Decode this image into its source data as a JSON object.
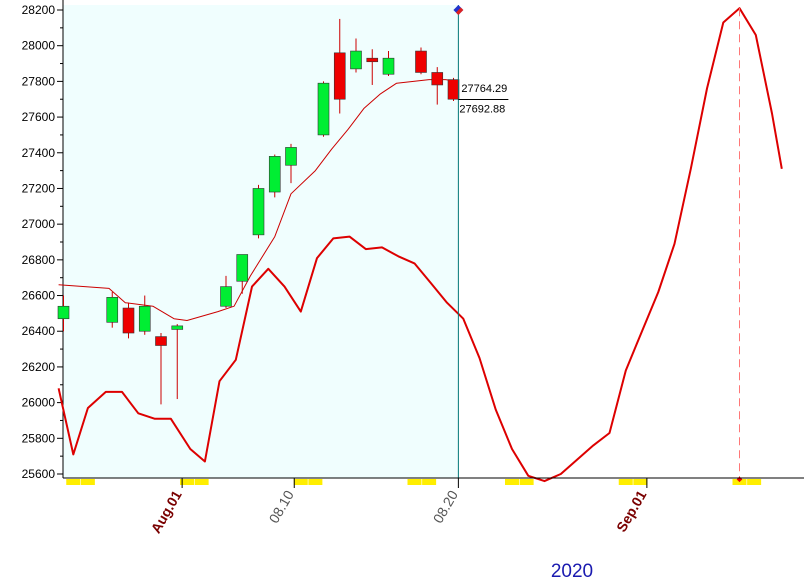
{
  "chart_data": {
    "type": "candlestick",
    "title": "",
    "xlabel": "",
    "ylabel": "",
    "year_label": "2020",
    "ylim": [
      25550,
      28230
    ],
    "y_ticks": [
      25600,
      25800,
      26000,
      26200,
      26400,
      26600,
      26800,
      27000,
      27200,
      27400,
      27600,
      27800,
      28000,
      28200
    ],
    "x_ticks": [
      {
        "label": "Aug.01",
        "slot": 7.3,
        "color": "#7a0000",
        "weight": "bold"
      },
      {
        "label": "08.10",
        "slot": 14.2,
        "color": "#555555",
        "weight": "normal"
      },
      {
        "label": "08.20",
        "slot": 24.3,
        "color": "#555555",
        "weight": "normal"
      },
      {
        "label": "Sep.01",
        "slot": 35.9,
        "color": "#7a0000",
        "weight": "bold"
      }
    ],
    "candles": [
      {
        "slot": 0,
        "open": 26470,
        "close": 26540,
        "high": 26600,
        "low": 26400
      },
      {
        "slot": 3,
        "open": 26450,
        "close": 26590,
        "high": 26620,
        "low": 26420
      },
      {
        "slot": 4,
        "open": 26530,
        "close": 26390,
        "high": 26560,
        "low": 26360
      },
      {
        "slot": 5,
        "open": 26400,
        "close": 26540,
        "high": 26600,
        "low": 26380
      },
      {
        "slot": 6,
        "open": 26370,
        "close": 26320,
        "high": 26390,
        "low": 25990
      },
      {
        "slot": 7,
        "open": 26410,
        "close": 26430,
        "high": 26440,
        "low": 26020
      },
      {
        "slot": 10,
        "open": 26540,
        "close": 26650,
        "high": 26710,
        "low": 26530
      },
      {
        "slot": 11,
        "open": 26680,
        "close": 26830,
        "high": 26830,
        "low": 26610
      },
      {
        "slot": 12,
        "open": 26940,
        "close": 27200,
        "high": 27220,
        "low": 26920
      },
      {
        "slot": 13,
        "open": 27180,
        "close": 27380,
        "high": 27390,
        "low": 27150
      },
      {
        "slot": 14,
        "open": 27330,
        "close": 27430,
        "high": 27450,
        "low": 27230
      },
      {
        "slot": 16,
        "open": 27500,
        "close": 27790,
        "high": 27800,
        "low": 27490
      },
      {
        "slot": 17,
        "open": 27960,
        "close": 27700,
        "high": 28150,
        "low": 27620
      },
      {
        "slot": 18,
        "open": 27870,
        "close": 27970,
        "high": 28040,
        "low": 27850
      },
      {
        "slot": 19,
        "open": 27930,
        "close": 27910,
        "high": 27980,
        "low": 27780
      },
      {
        "slot": 20,
        "open": 27840,
        "close": 27930,
        "high": 27970,
        "low": 27830
      },
      {
        "slot": 22,
        "open": 27970,
        "close": 27850,
        "high": 27990,
        "low": 27840
      },
      {
        "slot": 23,
        "open": 27850,
        "close": 27780,
        "high": 27880,
        "low": 27670
      },
      {
        "slot": 24,
        "open": 27810,
        "close": 27700,
        "high": 27820,
        "low": 27690
      }
    ],
    "series": [
      {
        "color": "#cc0000",
        "width": 1,
        "points": [
          [
            -0.3,
            26660
          ],
          [
            2.8,
            26640
          ],
          [
            3.8,
            26560
          ],
          [
            5.5,
            26540
          ],
          [
            6.8,
            26470
          ],
          [
            7.6,
            26460
          ],
          [
            9.5,
            26510
          ],
          [
            10.5,
            26540
          ],
          [
            11.5,
            26710
          ],
          [
            13,
            26930
          ],
          [
            14,
            27170
          ],
          [
            15.5,
            27300
          ],
          [
            16.5,
            27420
          ],
          [
            17.5,
            27530
          ],
          [
            18.5,
            27650
          ],
          [
            19.5,
            27730
          ],
          [
            20.5,
            27790
          ],
          [
            22.5,
            27810
          ],
          [
            23.5,
            27810
          ],
          [
            24.3,
            27800
          ]
        ]
      },
      {
        "color": "#dd0000",
        "width": 2,
        "points": [
          [
            -0.3,
            26080
          ],
          [
            0.6,
            25710
          ],
          [
            1.5,
            25970
          ],
          [
            2.6,
            26060
          ],
          [
            3.6,
            26060
          ],
          [
            4.6,
            25940
          ],
          [
            5.6,
            25910
          ],
          [
            6.6,
            25910
          ],
          [
            7.8,
            25740
          ],
          [
            8.7,
            25670
          ],
          [
            9.6,
            26120
          ],
          [
            10.6,
            26240
          ],
          [
            11.6,
            26650
          ],
          [
            12.6,
            26750
          ],
          [
            13.6,
            26650
          ],
          [
            14.6,
            26510
          ],
          [
            15.6,
            26810
          ],
          [
            16.6,
            26920
          ],
          [
            17.6,
            26930
          ],
          [
            18.6,
            26860
          ],
          [
            19.6,
            26870
          ],
          [
            20.6,
            26820
          ],
          [
            21.6,
            26780
          ],
          [
            22.6,
            26670
          ],
          [
            23.6,
            26560
          ],
          [
            24.6,
            26470
          ],
          [
            25.6,
            26250
          ],
          [
            26.6,
            25960
          ],
          [
            27.6,
            25740
          ],
          [
            28.6,
            25590
          ],
          [
            29.6,
            25560
          ],
          [
            30.6,
            25600
          ],
          [
            31.6,
            25680
          ],
          [
            32.6,
            25760
          ],
          [
            33.6,
            25830
          ],
          [
            34.6,
            26180
          ],
          [
            35.6,
            26400
          ],
          [
            36.6,
            26620
          ],
          [
            37.6,
            26890
          ],
          [
            38.6,
            27310
          ],
          [
            39.6,
            27760
          ],
          [
            40.6,
            28130
          ],
          [
            41.6,
            28210
          ],
          [
            42.6,
            28060
          ],
          [
            43.6,
            27620
          ],
          [
            44.2,
            27310
          ]
        ]
      }
    ],
    "cursor": {
      "slot": 24.3,
      "price": 28200
    },
    "future_marker": {
      "slot": 41.6,
      "top_price": 28210,
      "bottom_price": 25570
    },
    "price_readouts": [
      {
        "price": 27764.29,
        "label": "27764.29"
      },
      {
        "price": 27692.88,
        "label": "27692.88"
      }
    ],
    "shaded_region_end_slot": 24.3,
    "weekend_bars": [
      0.6,
      1.5,
      7.6,
      8.5,
      14.6,
      15.5,
      21.6,
      22.5,
      27.6,
      28.5,
      34.6,
      35.5,
      41.6,
      42.5
    ]
  }
}
